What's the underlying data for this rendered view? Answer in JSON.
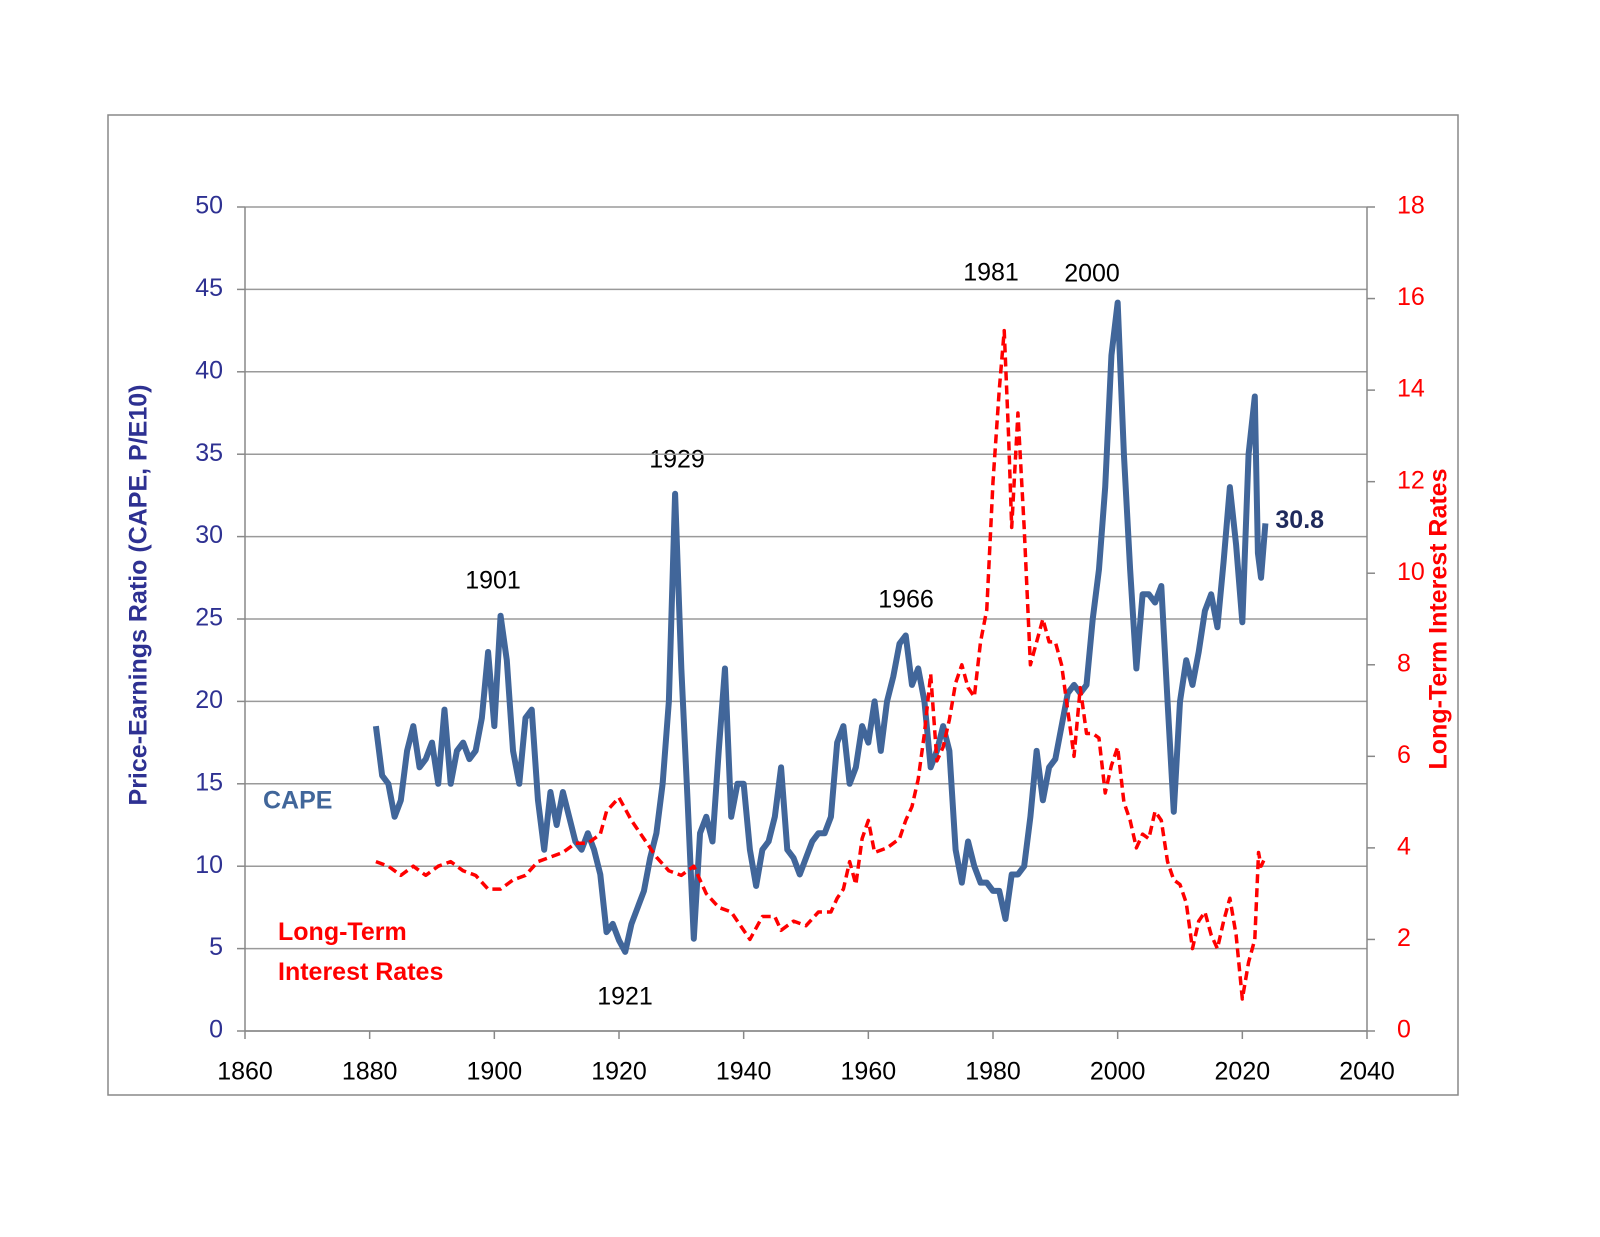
{
  "chart_data": {
    "type": "line",
    "xlim": [
      1860,
      2040
    ],
    "xticks": [
      1860,
      1880,
      1900,
      1920,
      1940,
      1960,
      1980,
      2000,
      2020,
      2040
    ],
    "ylim": [
      0,
      50
    ],
    "yticks": [
      0,
      5,
      10,
      15,
      20,
      25,
      30,
      35,
      40,
      45,
      50
    ],
    "y2lim": [
      0,
      18
    ],
    "y2ticks": [
      0,
      2,
      4,
      6,
      8,
      10,
      12,
      14,
      16,
      18
    ],
    "ylabel": "Price-Earnings Ratio (CAPE, P/E10)",
    "y2label": "Long-Term Interest Rates",
    "grid": true,
    "annotations": [
      "1901",
      "1929",
      "1966",
      "1981",
      "2000",
      "1921"
    ],
    "series": [
      {
        "name": "CAPE",
        "color": "#41669a",
        "dash": false,
        "x": [
          1881,
          1882,
          1883,
          1884,
          1885,
          1886,
          1887,
          1888,
          1889,
          1890,
          1891,
          1892,
          1893,
          1894,
          1895,
          1896,
          1897,
          1898,
          1899,
          1900,
          1901,
          1902,
          1903,
          1904,
          1905,
          1906,
          1907,
          1908,
          1909,
          1910,
          1911,
          1912,
          1913,
          1914,
          1915,
          1916,
          1917,
          1918,
          1919,
          1920,
          1921,
          1922,
          1923,
          1924,
          1925,
          1926,
          1927,
          1928,
          1929,
          1930,
          1931,
          1932,
          1933,
          1934,
          1935,
          1936,
          1937,
          1938,
          1939,
          1940,
          1941,
          1942,
          1943,
          1944,
          1945,
          1946,
          1947,
          1948,
          1949,
          1950,
          1951,
          1952,
          1953,
          1954,
          1955,
          1956,
          1957,
          1958,
          1959,
          1960,
          1961,
          1962,
          1963,
          1964,
          1965,
          1966,
          1967,
          1968,
          1969,
          1970,
          1971,
          1972,
          1973,
          1974,
          1975,
          1976,
          1977,
          1978,
          1979,
          1980,
          1981,
          1982,
          1983,
          1984,
          1985,
          1986,
          1987,
          1988,
          1989,
          1990,
          1991,
          1992,
          1993,
          1994,
          1995,
          1996,
          1997,
          1998,
          1999,
          2000,
          2001,
          2002,
          2003,
          2004,
          2005,
          2006,
          2007,
          2008,
          2009,
          2010,
          2011,
          2012,
          2013,
          2014,
          2015,
          2016,
          2017,
          2018,
          2019,
          2020,
          2021,
          2022,
          2022.5,
          2023,
          2023.7
        ],
        "values": [
          18.5,
          15.5,
          15,
          13,
          14,
          17,
          18.5,
          16,
          16.5,
          17.5,
          15,
          19.5,
          15,
          17,
          17.5,
          16.5,
          17,
          19,
          23,
          18.5,
          25.2,
          22.5,
          17,
          15,
          19,
          19.5,
          14,
          11,
          14.5,
          12.5,
          14.5,
          13,
          11.5,
          11,
          12,
          11,
          9.5,
          6,
          6.5,
          5.5,
          4.8,
          6.5,
          7.5,
          8.5,
          10.5,
          12,
          15,
          20,
          32.6,
          22,
          14,
          5.6,
          12,
          13,
          11.5,
          17,
          22,
          13,
          15,
          15,
          11,
          8.8,
          11,
          11.5,
          13,
          16,
          11,
          10.5,
          9.5,
          10.5,
          11.5,
          12,
          12,
          13,
          17.5,
          18.5,
          15,
          16,
          18.5,
          17.5,
          20,
          17,
          20,
          21.5,
          23.5,
          24,
          21,
          22,
          20,
          16,
          17,
          18.5,
          17,
          11,
          9,
          11.5,
          10,
          9,
          9,
          8.5,
          8.5,
          6.8,
          9.5,
          9.5,
          10,
          13,
          17,
          14,
          16,
          16.5,
          18.5,
          20.5,
          21,
          20.5,
          21,
          25,
          28,
          33,
          41,
          44.2,
          35,
          28,
          22,
          26.5,
          26.5,
          26,
          27,
          20,
          13.3,
          20,
          22.5,
          21,
          23,
          25.5,
          26.5,
          24.5,
          28.5,
          33,
          29.5,
          24.8,
          35,
          38.5,
          29,
          27.5,
          30.8
        ]
      },
      {
        "name": "Long-Term Interest Rates",
        "color": "#ff0000",
        "dash": true,
        "axis": "y2",
        "x": [
          1881,
          1883,
          1885,
          1887,
          1889,
          1891,
          1893,
          1895,
          1897,
          1899,
          1901,
          1903,
          1905,
          1907,
          1909,
          1911,
          1913,
          1915,
          1917,
          1918,
          1920,
          1922,
          1924,
          1926,
          1928,
          1930,
          1932,
          1934,
          1936,
          1938,
          1940,
          1941,
          1943,
          1945,
          1946,
          1948,
          1950,
          1952,
          1954,
          1955,
          1956,
          1957,
          1958,
          1959,
          1960,
          1961,
          1963,
          1965,
          1966,
          1967,
          1968,
          1969,
          1970,
          1971,
          1972,
          1973,
          1974,
          1975,
          1976,
          1977,
          1978,
          1979,
          1980,
          1981,
          1981.8,
          1982.5,
          1983,
          1984,
          1985,
          1986,
          1987,
          1988,
          1989,
          1990,
          1991,
          1992,
          1993,
          1994,
          1995,
          1996,
          1997,
          1998,
          1999,
          2000,
          2001,
          2002,
          2003,
          2004,
          2005,
          2006,
          2007,
          2008,
          2009,
          2010,
          2011,
          2012,
          2013,
          2014,
          2015,
          2016,
          2017,
          2018,
          2019,
          2020,
          2021,
          2022,
          2022.6,
          2023,
          2023.7
        ],
        "values": [
          3.7,
          3.6,
          3.4,
          3.6,
          3.4,
          3.6,
          3.7,
          3.5,
          3.4,
          3.1,
          3.1,
          3.3,
          3.4,
          3.7,
          3.8,
          3.9,
          4.1,
          4.1,
          4.3,
          4.8,
          5.1,
          4.6,
          4.2,
          3.8,
          3.5,
          3.4,
          3.6,
          3.0,
          2.7,
          2.6,
          2.2,
          2.0,
          2.5,
          2.5,
          2.2,
          2.4,
          2.3,
          2.6,
          2.6,
          2.9,
          3.1,
          3.7,
          3.2,
          4.2,
          4.6,
          3.9,
          4.0,
          4.2,
          4.6,
          4.9,
          5.5,
          6.5,
          7.8,
          5.9,
          6.2,
          6.8,
          7.6,
          8.0,
          7.5,
          7.3,
          8.5,
          9.2,
          12.0,
          14.0,
          15.3,
          13.0,
          11.0,
          13.5,
          11.0,
          8.0,
          8.5,
          9.0,
          8.5,
          8.5,
          8.0,
          7.0,
          6.0,
          7.5,
          6.5,
          6.5,
          6.4,
          5.2,
          5.8,
          6.2,
          5.0,
          4.6,
          4.0,
          4.3,
          4.2,
          4.8,
          4.6,
          3.7,
          3.3,
          3.2,
          2.8,
          1.8,
          2.4,
          2.6,
          2.1,
          1.8,
          2.4,
          2.9,
          2.1,
          0.7,
          1.5,
          2.0,
          3.9,
          3.6,
          3.8
        ]
      }
    ]
  }
}
